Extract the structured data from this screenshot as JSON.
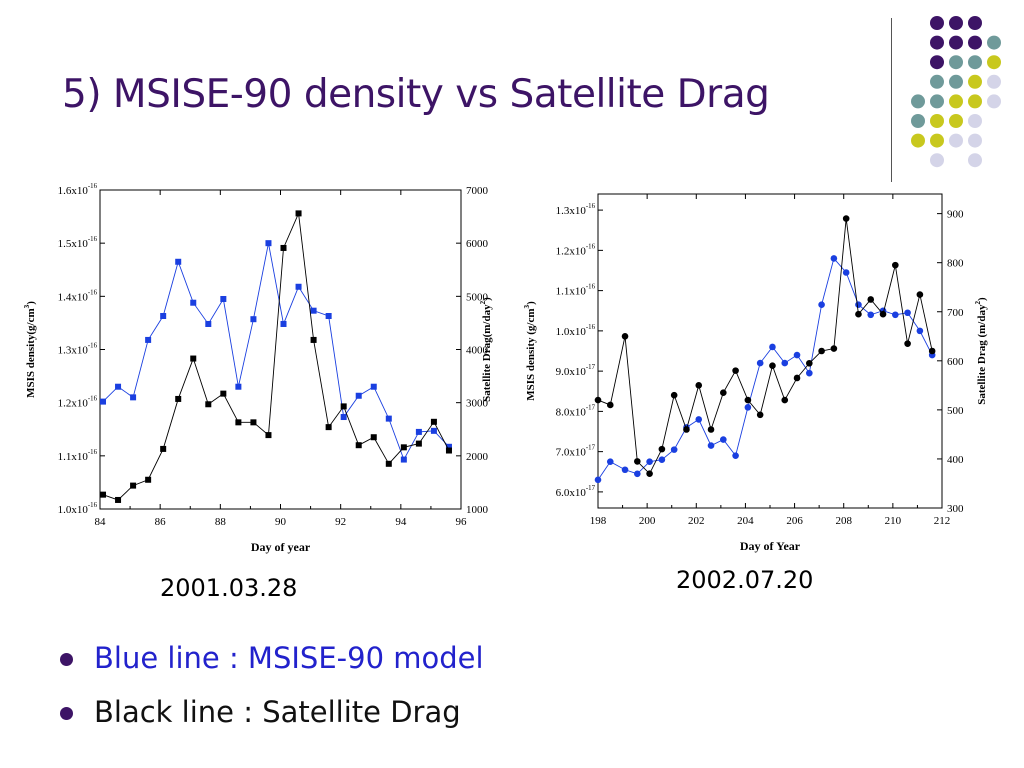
{
  "slide": {
    "title": "5) MSISE-90 density vs Satellite Drag",
    "dates": [
      "2001.03.28",
      "2002.07.20"
    ],
    "bullets": [
      {
        "text": "Blue line : MSISE-90 model",
        "color": "#2222cc"
      },
      {
        "text": "Black line : Satellite Drag",
        "color": "#111111"
      }
    ],
    "bullet_color": "#3d1466",
    "decor_dot_colors": [
      "#3d1466",
      "#6f9a9a",
      "#c8c81e",
      "#d4d4e8"
    ]
  },
  "chart_data": [
    {
      "type": "line",
      "xlabel": "Day of year",
      "ylabel": "MSIS density(g/cm",
      "ylabel_sup": "3",
      "ylabel_tail": ")",
      "y2label": "Satellite Drag(m/day",
      "y2label_sup": "2",
      "y2label_tail": ")",
      "xlim": [
        84,
        96
      ],
      "ylim": [
        1e-16,
        1.6e-16
      ],
      "y2lim": [
        1000,
        7000
      ],
      "xticks": [
        84,
        86,
        88,
        90,
        92,
        94,
        96
      ],
      "xtick_labels": [
        "84",
        "86",
        "88",
        "90",
        "92",
        "94",
        "96"
      ],
      "yticks": [
        1e-16,
        1.1e-16,
        1.2e-16,
        1.3e-16,
        1.4e-16,
        1.5e-16,
        1.6e-16
      ],
      "ytick_labels": [
        {
          "base": "1.0x10",
          "exp": "-16"
        },
        {
          "base": "1.1x10",
          "exp": "-16"
        },
        {
          "base": "1.2x10",
          "exp": "-16"
        },
        {
          "base": "1.3x10",
          "exp": "-16"
        },
        {
          "base": "1.4x10",
          "exp": "-16"
        },
        {
          "base": "1.5x10",
          "exp": "-16"
        },
        {
          "base": "1.6x10",
          "exp": "-16"
        }
      ],
      "y2ticks": [
        1000,
        2000,
        3000,
        4000,
        5000,
        6000,
        7000
      ],
      "y2tick_labels": [
        "1000",
        "2000",
        "3000",
        "4000",
        "5000",
        "6000",
        "7000"
      ],
      "marker": "square",
      "series": [
        {
          "color": "#1a3fe0",
          "axis": "left",
          "x": [
            84.1,
            84.6,
            85.1,
            85.6,
            86.1,
            86.6,
            87.1,
            87.6,
            88.1,
            88.6,
            89.1,
            89.6,
            90.1,
            90.6,
            91.1,
            91.6,
            92.1,
            92.6,
            93.1,
            93.6,
            94.1,
            94.6,
            95.1,
            95.6
          ],
          "y": [
            1.202e-16,
            1.23e-16,
            1.21e-16,
            1.318e-16,
            1.363e-16,
            1.465e-16,
            1.388e-16,
            1.348e-16,
            1.395e-16,
            1.23e-16,
            1.357e-16,
            1.5e-16,
            1.348e-16,
            1.418e-16,
            1.373e-16,
            1.363e-16,
            1.173e-16,
            1.213e-16,
            1.23e-16,
            1.17e-16,
            1.093e-16,
            1.145e-16,
            1.147e-16,
            1.117e-16
          ]
        },
        {
          "color": "#000000",
          "axis": "right",
          "x": [
            84.1,
            84.6,
            85.1,
            85.6,
            86.1,
            86.6,
            87.1,
            87.6,
            88.1,
            88.6,
            89.1,
            89.6,
            90.1,
            90.6,
            91.1,
            91.6,
            92.1,
            92.6,
            93.1,
            93.6,
            94.1,
            94.6,
            95.1,
            95.6
          ],
          "y": [
            1270,
            1170,
            1440,
            1550,
            2130,
            3070,
            3830,
            2970,
            3170,
            2630,
            2630,
            2390,
            5910,
            6560,
            4180,
            2540,
            2930,
            2200,
            2350,
            1850,
            2160,
            2230,
            2640,
            2100
          ]
        }
      ]
    },
    {
      "type": "line",
      "xlabel": "Day of Year",
      "ylabel": "MSIS density (g/cm",
      "ylabel_sup": "3",
      "ylabel_tail": ")",
      "y2label": "Satellite Drag (m/day",
      "y2label_sup": "2",
      "y2label_tail": ")",
      "xlim": [
        198,
        212
      ],
      "ylim": [
        5.6e-17,
        1.34e-16
      ],
      "y2lim": [
        300,
        940
      ],
      "xticks": [
        198,
        200,
        202,
        204,
        206,
        208,
        210,
        212
      ],
      "xtick_labels": [
        "198",
        "200",
        "202",
        "204",
        "206",
        "208",
        "210",
        "212"
      ],
      "yticks": [
        6e-17,
        7e-17,
        8e-17,
        9e-17,
        1e-16,
        1.1e-16,
        1.2e-16,
        1.3e-16
      ],
      "ytick_labels": [
        {
          "base": "6.0x10",
          "exp": "-17"
        },
        {
          "base": "7.0x10",
          "exp": "-17"
        },
        {
          "base": "8.0x10",
          "exp": "-17"
        },
        {
          "base": "9.0x10",
          "exp": "-17"
        },
        {
          "base": "1.0x10",
          "exp": "-16"
        },
        {
          "base": "1.1x10",
          "exp": "-16"
        },
        {
          "base": "1.2x10",
          "exp": "-16"
        },
        {
          "base": "1.3x10",
          "exp": "-16"
        }
      ],
      "y2ticks": [
        300,
        400,
        500,
        600,
        700,
        800,
        900
      ],
      "y2tick_labels": [
        "300",
        "400",
        "500",
        "600",
        "700",
        "800",
        "900"
      ],
      "marker": "circle",
      "series": [
        {
          "color": "#1a3fe0",
          "axis": "left",
          "x": [
            198.0,
            198.5,
            199.1,
            199.6,
            200.1,
            200.6,
            201.1,
            201.6,
            202.1,
            202.6,
            203.1,
            203.6,
            204.1,
            204.6,
            205.1,
            205.6,
            206.1,
            206.6,
            207.1,
            207.6,
            208.1,
            208.6,
            209.1,
            209.6,
            210.1,
            210.6,
            211.1,
            211.6
          ],
          "y": [
            6.3e-17,
            6.75e-17,
            6.55e-17,
            6.45e-17,
            6.75e-17,
            6.8e-17,
            7.05e-17,
            7.6e-17,
            7.8e-17,
            7.15e-17,
            7.3e-17,
            6.9e-17,
            8.1e-17,
            9.2e-17,
            9.6e-17,
            9.2e-17,
            9.4e-17,
            8.95e-17,
            1.065e-16,
            1.18e-16,
            1.145e-16,
            1.065e-16,
            1.04e-16,
            1.05e-16,
            1.04e-16,
            1.045e-16,
            1e-16,
            9.4e-17
          ]
        },
        {
          "color": "#000000",
          "axis": "right",
          "x": [
            198.0,
            198.5,
            199.1,
            199.6,
            200.1,
            200.6,
            201.1,
            201.6,
            202.1,
            202.6,
            203.1,
            203.6,
            204.1,
            204.6,
            205.1,
            205.6,
            206.1,
            206.6,
            207.1,
            207.6,
            208.1,
            208.6,
            209.1,
            209.6,
            210.1,
            210.6,
            211.1,
            211.6
          ],
          "y": [
            520,
            510,
            650,
            395,
            370,
            420,
            530,
            460,
            550,
            460,
            535,
            580,
            520,
            490,
            590,
            520,
            565,
            595,
            620,
            625,
            890,
            695,
            725,
            695,
            795,
            635,
            735,
            620
          ]
        }
      ]
    }
  ]
}
